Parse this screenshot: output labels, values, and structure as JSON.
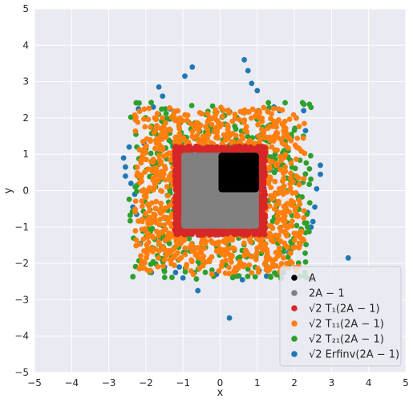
{
  "chart_data": {
    "type": "scatter",
    "title": "",
    "xlabel": "x",
    "ylabel": "y",
    "xlim": [
      -5,
      5
    ],
    "ylim": [
      -5,
      5
    ],
    "xticks": [
      -5,
      -4,
      -3,
      -2,
      -1,
      0,
      1,
      2,
      3,
      4,
      5
    ],
    "yticks": [
      -5,
      -4,
      -3,
      -2,
      -1,
      0,
      1,
      2,
      3,
      4,
      5
    ],
    "grid": true,
    "background": "#eaeaf2",
    "legend_position": "lower-right",
    "series": [
      {
        "name": "A",
        "color": "#000000",
        "shape": "square",
        "xrange": [
          0,
          1
        ],
        "yrange": [
          0,
          1
        ]
      },
      {
        "name": "2A − 1",
        "color": "#808080",
        "shape": "square",
        "xrange": [
          -1,
          1
        ],
        "yrange": [
          -1,
          1
        ]
      },
      {
        "name": "√2 T₁(2A − 1)",
        "color": "#d62728",
        "shape": "square-ring",
        "inner_half_width": 1.0,
        "outer_half_width": 1.22
      },
      {
        "name": "√2 T₁₁(2A − 1)",
        "color": "#ff7f0e",
        "shape": "ring",
        "inner_half_width": 1.05,
        "outer_half_width": 2.3
      },
      {
        "name": "√2 T₂₁(2A − 1)",
        "color": "#2ca02c",
        "shape": "ring",
        "inner_half_width": 1.05,
        "outer_half_width": 2.45
      },
      {
        "name": "√2 Erfinv(2A − 1)",
        "color": "#1f77b4",
        "shape": "outliers",
        "points": [
          [
            -2.6,
            0.9
          ],
          [
            -2.55,
            0.4
          ],
          [
            -2.45,
            1.2
          ],
          [
            -2.35,
            -0.45
          ],
          [
            -2.2,
            2.25
          ],
          [
            -2.3,
            -0.1
          ],
          [
            -2.05,
            1.3
          ],
          [
            -2.4,
            0.2
          ],
          [
            -2.15,
            -1.45
          ],
          [
            -2.25,
            -0.65
          ],
          [
            -1.95,
            -1.6
          ],
          [
            -1.85,
            -2.25
          ],
          [
            -1.65,
            2.85
          ],
          [
            -1.55,
            2.6
          ],
          [
            -1.5,
            -2.1
          ],
          [
            -1.2,
            -2.25
          ],
          [
            -1.0,
            -2.4
          ],
          [
            -0.95,
            3.15
          ],
          [
            -0.75,
            3.4
          ],
          [
            -0.6,
            -2.75
          ],
          [
            -0.1,
            -2.3
          ],
          [
            0.25,
            -3.5
          ],
          [
            0.45,
            -2.35
          ],
          [
            0.6,
            -2.45
          ],
          [
            0.65,
            3.6
          ],
          [
            0.75,
            3.3
          ],
          [
            0.85,
            2.95
          ],
          [
            1.0,
            2.75
          ],
          [
            1.05,
            -2.2
          ],
          [
            1.25,
            -2.35
          ],
          [
            1.45,
            2.3
          ],
          [
            1.6,
            2.2
          ],
          [
            1.7,
            -2.25
          ],
          [
            1.85,
            -1.7
          ],
          [
            2.05,
            -2.15
          ],
          [
            2.3,
            1.65
          ],
          [
            2.35,
            -0.6
          ],
          [
            2.45,
            -1.0
          ],
          [
            2.6,
            0.05
          ],
          [
            2.55,
            -0.45
          ],
          [
            2.7,
            0.45
          ],
          [
            2.7,
            0.7
          ],
          [
            3.45,
            -1.85
          ],
          [
            -1.8,
            2.3
          ],
          [
            -1.35,
            2.25
          ],
          [
            2.05,
            2.0
          ],
          [
            -2.55,
            0.65
          ],
          [
            2.5,
            -0.85
          ],
          [
            2.25,
            2.2
          ],
          [
            -1.1,
            -2.1
          ]
        ]
      }
    ]
  }
}
